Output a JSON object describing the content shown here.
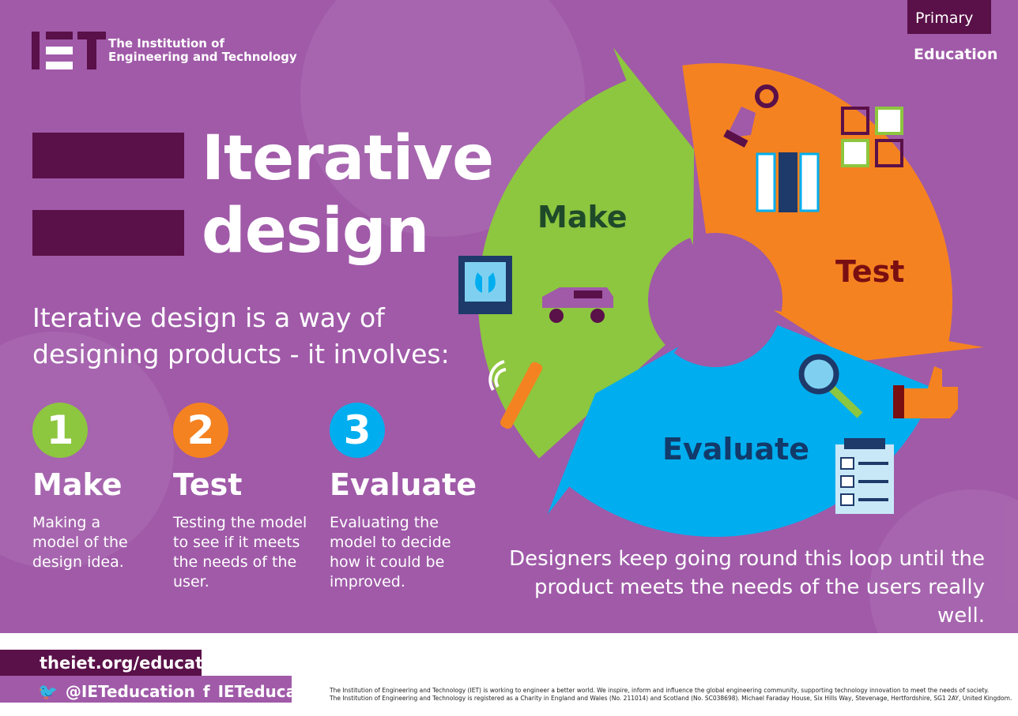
{
  "brand": {
    "logo_letters": "IET",
    "name_line1": "The Institution of",
    "name_line2": "Engineering and Technology"
  },
  "tag": {
    "level": "Primary",
    "section": "Education"
  },
  "title": {
    "line1": "Iterative",
    "line2": "design"
  },
  "intro": "Iterative design is a way of designing products - it involves:",
  "steps": [
    {
      "num": "1",
      "name": "Make",
      "desc": "Making a model of the design idea.",
      "color": "#8dc63f"
    },
    {
      "num": "2",
      "name": "Test",
      "desc": "Testing the model to see if it meets the needs of the user.",
      "color": "#f58220"
    },
    {
      "num": "3",
      "name": "Evaluate",
      "desc": "Evaluating the model to decide how it could be improved.",
      "color": "#00aeef"
    }
  ],
  "cycle": {
    "labels": {
      "make": "Make",
      "test": "Test",
      "evaluate": "Evaluate"
    },
    "label_colors": {
      "make": "#1f4a2a",
      "test": "#7a0f12",
      "evaluate": "#123a6a"
    },
    "icons": [
      "3d-printer-icon",
      "car-icon",
      "toothbrush-icon",
      "pointing-hand-icon",
      "quiz-cards-icon",
      "checkbox-grid-icon",
      "magnifier-icon",
      "thumbs-up-icon",
      "clipboard-checklist-icon"
    ]
  },
  "loop_note": "Designers keep going round this loop until the product meets the needs of the users really well.",
  "footer": {
    "url": "theiet.org/education",
    "twitter": "@IETeducation",
    "facebook": "IETeducation",
    "legal1": "The Institution of Engineering and Technology (IET) is working to engineer a better world. We inspire, inform and influence the global engineering community, supporting technology innovation to meet the needs of society.",
    "legal2": "The Institution of Engineering and Technology is registered as a Charity in England and Wales (No. 211014) and Scotland (No. SC038698). Michael Faraday House, Six Hills Way, Stevenage, Hertfordshire, SG1 2AY, United Kingdom."
  },
  "colors": {
    "background": "#a05aa8",
    "dark": "#5a1048",
    "green": "#8dc63f",
    "orange": "#f58220",
    "blue": "#00aeef"
  }
}
